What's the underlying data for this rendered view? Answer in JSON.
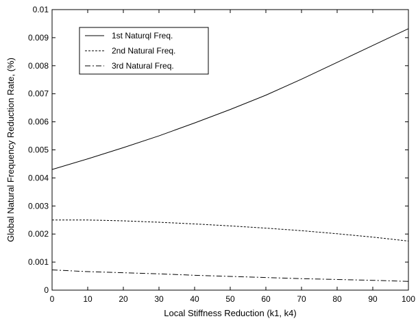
{
  "chart_data": {
    "type": "line",
    "xlabel": "Local Stiffness Reduction (k1, k4)",
    "ylabel": "Global Natural Frequency Reduction Rate, (%)",
    "xlim": [
      0,
      100
    ],
    "ylim": [
      0,
      0.01
    ],
    "xticks": [
      0,
      10,
      20,
      30,
      40,
      50,
      60,
      70,
      80,
      90,
      100
    ],
    "yticks": [
      0,
      0.001,
      0.002,
      0.003,
      0.004,
      0.005,
      0.006,
      0.007,
      0.008,
      0.009,
      0.01
    ],
    "xtick_labels": [
      "0",
      "10",
      "20",
      "30",
      "40",
      "50",
      "60",
      "70",
      "80",
      "90",
      "100"
    ],
    "ytick_labels": [
      "0",
      "0.001",
      "0.002",
      "0.003",
      "0.004",
      "0.005",
      "0.006",
      "0.007",
      "0.008",
      "0.009",
      "0.01"
    ],
    "grid": false,
    "legend_position": "top-left",
    "x": [
      0,
      10,
      20,
      30,
      40,
      50,
      60,
      70,
      80,
      90,
      100
    ],
    "series": [
      {
        "name": "1st Naturql Freq.",
        "line_style": "solid",
        "color": "#000000",
        "values": [
          0.0043,
          0.00468,
          0.00508,
          0.0055,
          0.00596,
          0.00644,
          0.00695,
          0.00752,
          0.00812,
          0.00872,
          0.00932
        ]
      },
      {
        "name": "2nd Natural Freq.",
        "line_style": "dashed",
        "color": "#000000",
        "values": [
          0.0025,
          0.0025,
          0.00247,
          0.00242,
          0.00236,
          0.00229,
          0.00221,
          0.00212,
          0.00201,
          0.00189,
          0.00175
        ]
      },
      {
        "name": "3rd Natural Freq.",
        "line_style": "dashdot",
        "color": "#000000",
        "values": [
          0.00072,
          0.00066,
          0.00062,
          0.00058,
          0.00053,
          0.00049,
          0.00045,
          0.00041,
          0.00038,
          0.00035,
          0.00031
        ]
      }
    ]
  }
}
